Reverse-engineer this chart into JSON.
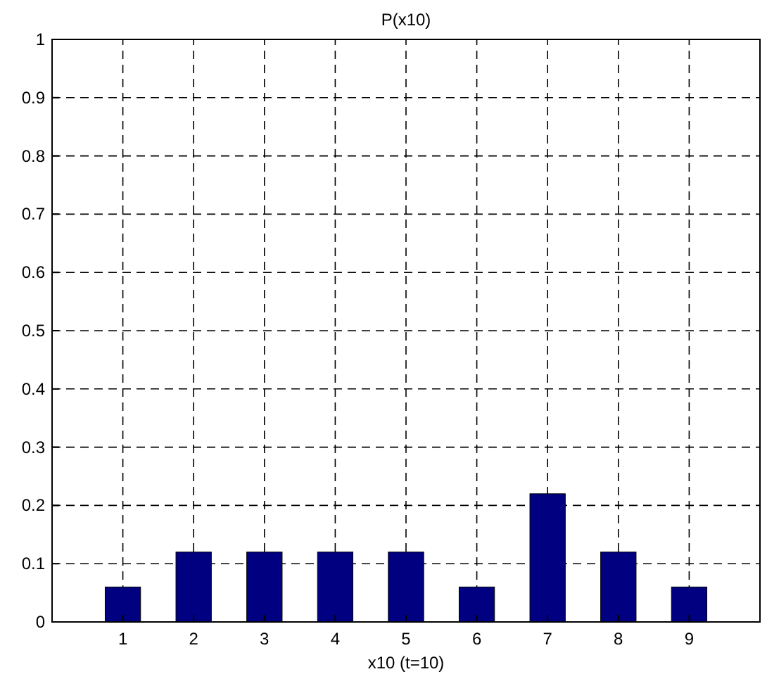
{
  "chart_data": {
    "type": "bar",
    "title": "P(x10)",
    "xlabel": "x10 (t=10)",
    "x": [
      1,
      2,
      3,
      4,
      5,
      6,
      7,
      8,
      9
    ],
    "values": [
      0.06,
      0.12,
      0.12,
      0.12,
      0.12,
      0.06,
      0.22,
      0.12,
      0.06
    ],
    "color": "#000080",
    "xlim": [
      0,
      10
    ],
    "xticks": [
      1,
      2,
      3,
      4,
      5,
      6,
      7,
      8,
      9
    ],
    "ylim": [
      0,
      1
    ],
    "yticks": [
      0,
      0.1,
      0.2,
      0.3,
      0.4,
      0.5,
      0.6,
      0.7,
      0.8,
      0.9,
      1
    ],
    "grid": true
  }
}
